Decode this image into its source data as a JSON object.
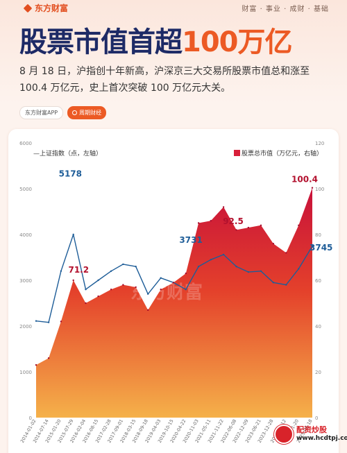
{
  "header": {
    "brand": "东方财富",
    "slogan": "财富 · 事业 · 成财 · 基础"
  },
  "title_main": "股票市值首超",
  "title_accent": "100万亿",
  "subtitle": "8 月 18 日，沪指创十年新高，沪深京三大交易所股票市值总和涨至 100.4 万亿元，史上首次突破 100 万亿元大关。",
  "tags": {
    "app": "东方财富APP",
    "more": "周期财经"
  },
  "watermark": {
    "text": "东方财富",
    "site_name": "配资炒股",
    "site_url": "www.hcdtpj.com"
  },
  "colors": {
    "index_line": "#1e5d98",
    "area_top": "#c8113a",
    "area_bottom": "#f5b14a",
    "title": "#1d2a66",
    "accent": "#ec5a24"
  },
  "chart_data": {
    "type": "area",
    "x": [
      "2014-01-02",
      "2014-07-14",
      "2015-01-20",
      "2015-07-29",
      "2016-02-04",
      "2016-08-15",
      "2017-02-28",
      "2017-09-01",
      "2018-03-15",
      "2018-09-18",
      "2019-04-03",
      "2019-10-15",
      "2020-04-22",
      "2020-11-03",
      "2021-05-11",
      "2021-11-22",
      "2022-06-08",
      "2022-12-09",
      "2023-06-21",
      "2023-12-28",
      "2024-07-12",
      "2025-01-20",
      "2025-08-18"
    ],
    "series": [
      {
        "name": "上证指数（点，左轴）",
        "axis": "left",
        "type": "line",
        "values": [
          2110,
          2080,
          3200,
          4000,
          2800,
          3000,
          3200,
          3350,
          3300,
          2700,
          3050,
          2950,
          2800,
          3300,
          3450,
          3560,
          3300,
          3180,
          3200,
          2950,
          2900,
          3250,
          3745
        ]
      },
      {
        "name": "股票总市值（万亿元，右轴）",
        "axis": "right",
        "type": "area",
        "values": [
          23,
          26,
          42,
          60,
          50,
          53,
          56,
          58,
          57,
          47,
          56,
          59,
          63,
          85,
          86,
          92,
          82,
          83,
          84,
          76,
          72,
          84,
          100.4
        ]
      }
    ],
    "annotations": [
      {
        "label": "5178",
        "series": 0,
        "x": "2015-06-12",
        "y": 5178
      },
      {
        "label": "71.2",
        "series": 1,
        "x": "2015-06-12",
        "y": 71.2
      },
      {
        "label": "3731",
        "series": 0,
        "x": "2020-07-09",
        "y": 3731
      },
      {
        "label": "92.5",
        "series": 1,
        "x": "2021-12-13",
        "y": 92.5
      },
      {
        "label": "100.4",
        "series": 1,
        "x": "2025-08-18",
        "y": 100.4
      },
      {
        "label": "3745",
        "series": 0,
        "x": "2025-08-18",
        "y": 3745
      }
    ],
    "y_left_ticks": [
      "0",
      "1000",
      "2000",
      "3000",
      "4000",
      "5000",
      "6000"
    ],
    "y_right_ticks": [
      "0",
      "20",
      "40",
      "60",
      "80",
      "100",
      "120"
    ],
    "ylim_left": [
      0,
      6000
    ],
    "ylim_right": [
      0,
      120
    ],
    "legend_left": "—上证指数（点，左轴）",
    "legend_right": "股票总市值（万亿元，右轴）",
    "legend": "top",
    "grid": false
  }
}
